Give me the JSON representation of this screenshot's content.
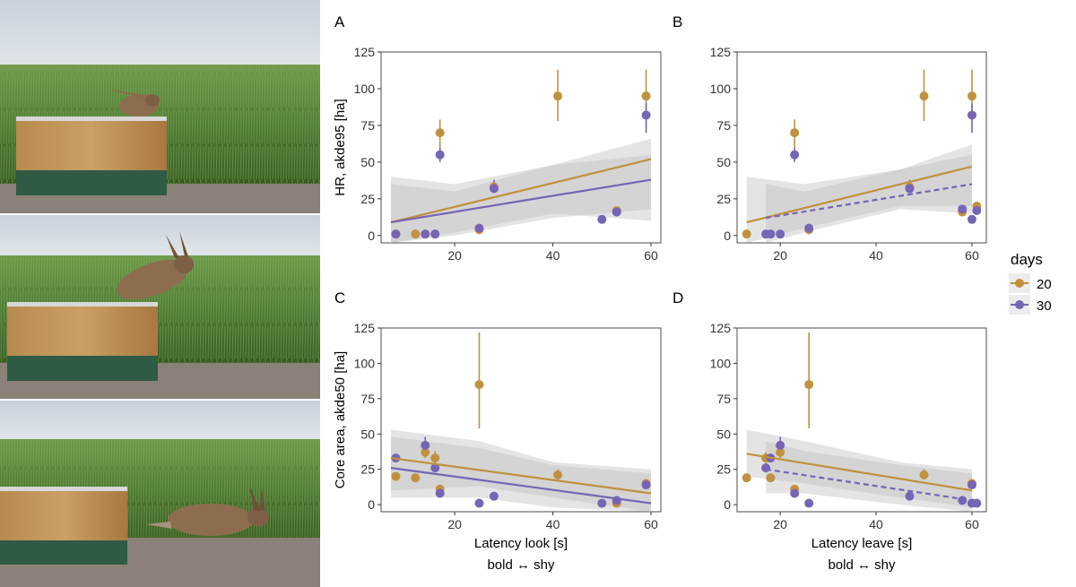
{
  "figure": {
    "legend": {
      "title": "days",
      "entries": [
        "20",
        "30"
      ]
    },
    "colors": {
      "d20": "#C0913F",
      "d30": "#7664B5",
      "band": "#BEBEBE"
    },
    "photo_alt": [
      "hare-sitting-on-box",
      "hare-leaping-off-box",
      "hare-running-away"
    ]
  },
  "chart_data": [
    {
      "type": "scatter",
      "panel": "A",
      "xlabel": "",
      "ylabel": "HR, akde95 [ha]",
      "xlim": [
        5,
        62
      ],
      "ylim": [
        -5,
        125
      ],
      "xticks": [
        20,
        40,
        60
      ],
      "yticks": [
        0,
        25,
        50,
        75,
        100,
        125
      ],
      "series": [
        {
          "name": "20",
          "points": [
            [
              8,
              1,
              1,
              1
            ],
            [
              12,
              1,
              1,
              1
            ],
            [
              17,
              70,
              60,
              79
            ],
            [
              25,
              4,
              3,
              5
            ],
            [
              28,
              33,
              29,
              37
            ],
            [
              41,
              95,
              78,
              113
            ],
            [
              53,
              17,
              14,
              20
            ],
            [
              59,
              95,
              78,
              113
            ]
          ],
          "fit": [
            [
              7,
              9
            ],
            [
              60,
              52
            ]
          ],
          "dashed": false,
          "band": [
            [
              7,
              -5,
              40
            ],
            [
              20,
              0,
              35
            ],
            [
              40,
              12,
              48
            ],
            [
              60,
              18,
              66
            ]
          ]
        },
        {
          "name": "30",
          "points": [
            [
              8,
              1,
              1,
              1
            ],
            [
              14,
              1,
              1,
              1
            ],
            [
              16,
              1,
              1,
              1
            ],
            [
              17,
              55,
              50,
              60
            ],
            [
              25,
              5,
              4,
              6
            ],
            [
              28,
              32,
              29,
              38
            ],
            [
              50,
              11,
              10,
              12
            ],
            [
              53,
              16,
              13,
              19
            ],
            [
              59,
              82,
              70,
              90
            ]
          ],
          "fit": [
            [
              7,
              9
            ],
            [
              60,
              38
            ]
          ],
          "dashed": false,
          "band": [
            [
              7,
              -5,
              35
            ],
            [
              20,
              2,
              30
            ],
            [
              40,
              15,
              48
            ],
            [
              60,
              10,
              55
            ]
          ]
        }
      ]
    },
    {
      "type": "scatter",
      "panel": "B",
      "xlabel": "",
      "ylabel": "",
      "xlim": [
        11,
        63
      ],
      "ylim": [
        -5,
        125
      ],
      "xticks": [
        20,
        40,
        60
      ],
      "yticks": [
        0,
        25,
        50,
        75,
        100,
        125
      ],
      "series": [
        {
          "name": "20",
          "points": [
            [
              13,
              1,
              1,
              1
            ],
            [
              23,
              70,
              60,
              79
            ],
            [
              26,
              4,
              3,
              5
            ],
            [
              47,
              33,
              29,
              37
            ],
            [
              50,
              95,
              78,
              113
            ],
            [
              58,
              16,
              13,
              19
            ],
            [
              60,
              95,
              78,
              113
            ],
            [
              61,
              20,
              17,
              22
            ]
          ],
          "fit": [
            [
              13,
              9
            ],
            [
              60,
              47
            ]
          ],
          "dashed": false,
          "band": [
            [
              13,
              -5,
              40
            ],
            [
              25,
              5,
              35
            ],
            [
              45,
              20,
              45
            ],
            [
              60,
              20,
              62
            ]
          ]
        },
        {
          "name": "30",
          "points": [
            [
              17,
              1,
              1,
              1
            ],
            [
              18,
              1,
              1,
              1
            ],
            [
              20,
              1,
              1,
              1
            ],
            [
              23,
              55,
              50,
              60
            ],
            [
              26,
              5,
              4,
              6
            ],
            [
              47,
              32,
              29,
              38
            ],
            [
              58,
              18,
              16,
              20
            ],
            [
              60,
              11,
              10,
              12
            ],
            [
              60,
              82,
              70,
              90
            ],
            [
              61,
              17,
              15,
              19
            ]
          ],
          "fit": [
            [
              17,
              12
            ],
            [
              60,
              35
            ]
          ],
          "dashed": true,
          "band": [
            [
              17,
              -5,
              35
            ],
            [
              25,
              2,
              30
            ],
            [
              45,
              18,
              45
            ],
            [
              60,
              15,
              55
            ]
          ]
        }
      ]
    },
    {
      "type": "scatter",
      "panel": "C",
      "xlabel": "Latency look [s]",
      "ylabel": "Core area, akde50 [ha]",
      "xlim": [
        5,
        62
      ],
      "ylim": [
        -5,
        125
      ],
      "xticks": [
        20,
        40,
        60
      ],
      "yticks": [
        0,
        25,
        50,
        75,
        100,
        125
      ],
      "caption": "bold ↔ shy",
      "series": [
        {
          "name": "20",
          "points": [
            [
              8,
              20,
              18,
              22
            ],
            [
              12,
              19,
              17,
              21
            ],
            [
              14,
              37,
              33,
              40
            ],
            [
              16,
              33,
              29,
              38
            ],
            [
              17,
              11,
              10,
              13
            ],
            [
              25,
              85,
              54,
              122
            ],
            [
              41,
              21,
              18,
              25
            ],
            [
              53,
              1,
              1,
              1
            ],
            [
              59,
              15,
              13,
              17
            ]
          ],
          "fit": [
            [
              7,
              33
            ],
            [
              60,
              8
            ]
          ],
          "dashed": false,
          "band": [
            [
              7,
              10,
              53
            ],
            [
              25,
              13,
              45
            ],
            [
              40,
              5,
              30
            ],
            [
              60,
              -5,
              25
            ]
          ]
        },
        {
          "name": "30",
          "points": [
            [
              8,
              33,
              30,
              36
            ],
            [
              14,
              42,
              38,
              48
            ],
            [
              16,
              26,
              23,
              29
            ],
            [
              17,
              8,
              7,
              9
            ],
            [
              25,
              1,
              1,
              1
            ],
            [
              28,
              6,
              5,
              7
            ],
            [
              50,
              1,
              1,
              1
            ],
            [
              53,
              3,
              2,
              4
            ],
            [
              59,
              14,
              12,
              16
            ]
          ],
          "fit": [
            [
              7,
              26
            ],
            [
              60,
              1
            ]
          ],
          "dashed": false,
          "band": [
            [
              7,
              5,
              48
            ],
            [
              25,
              5,
              40
            ],
            [
              40,
              -2,
              28
            ],
            [
              60,
              -5,
              22
            ]
          ]
        }
      ]
    },
    {
      "type": "scatter",
      "panel": "D",
      "xlabel": "Latency leave [s]",
      "ylabel": "",
      "xlim": [
        11,
        63
      ],
      "ylim": [
        -5,
        125
      ],
      "xticks": [
        20,
        40,
        60
      ],
      "yticks": [
        0,
        25,
        50,
        75,
        100,
        125
      ],
      "caption": "bold ↔ shy",
      "series": [
        {
          "name": "20",
          "points": [
            [
              13,
              19,
              17,
              21
            ],
            [
              17,
              33,
              29,
              37
            ],
            [
              18,
              19,
              17,
              21
            ],
            [
              20,
              37,
              33,
              40
            ],
            [
              23,
              11,
              10,
              13
            ],
            [
              26,
              85,
              54,
              122
            ],
            [
              50,
              21,
              18,
              25
            ],
            [
              60,
              1,
              1,
              1
            ],
            [
              60,
              15,
              13,
              17
            ]
          ],
          "fit": [
            [
              13,
              36
            ],
            [
              60,
              10
            ]
          ],
          "dashed": false,
          "band": [
            [
              13,
              20,
              53
            ],
            [
              25,
              15,
              45
            ],
            [
              45,
              5,
              30
            ],
            [
              60,
              -2,
              25
            ]
          ]
        },
        {
          "name": "30",
          "points": [
            [
              17,
              26,
              23,
              29
            ],
            [
              18,
              33,
              30,
              36
            ],
            [
              20,
              42,
              38,
              48
            ],
            [
              23,
              8,
              7,
              9
            ],
            [
              26,
              1,
              1,
              1
            ],
            [
              47,
              6,
              5,
              7
            ],
            [
              58,
              3,
              2,
              4
            ],
            [
              60,
              14,
              12,
              16
            ],
            [
              60,
              1,
              1,
              1
            ],
            [
              61,
              1,
              1,
              1
            ]
          ],
          "fit": [
            [
              17,
              25
            ],
            [
              60,
              3
            ]
          ],
          "dashed": true,
          "band": [
            [
              17,
              8,
              45
            ],
            [
              25,
              8,
              38
            ],
            [
              45,
              0,
              28
            ],
            [
              60,
              -5,
              22
            ]
          ]
        }
      ]
    }
  ]
}
